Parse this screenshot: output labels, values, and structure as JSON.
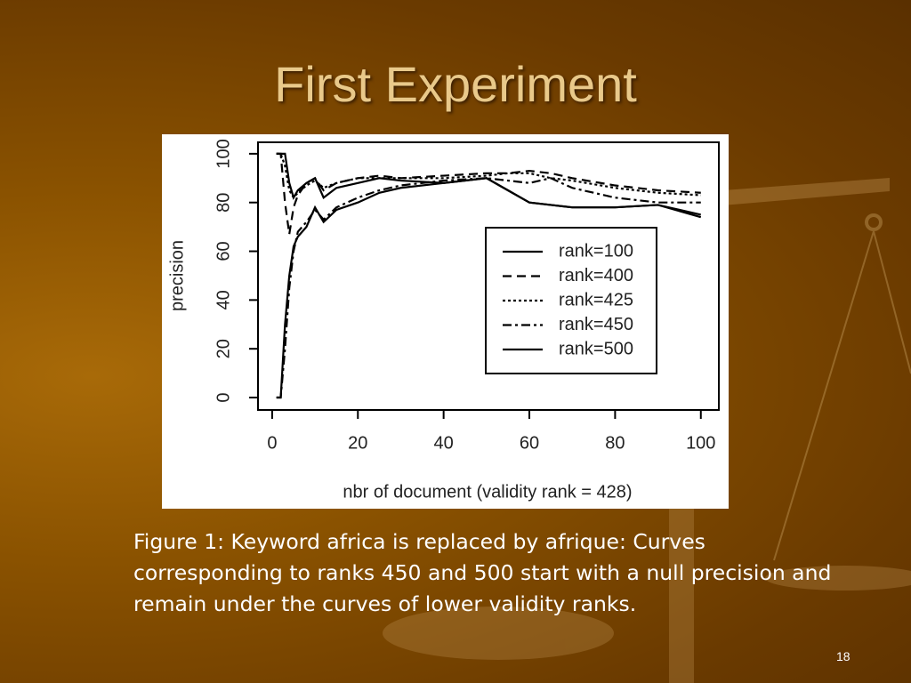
{
  "slide": {
    "title": "First Experiment",
    "caption": "Figure 1: Keyword africa is replaced by afrique: Curves corresponding to ranks 450 and 500 start with a null precision and remain under the curves of lower validity ranks.",
    "page_number": "18"
  },
  "chart_data": {
    "type": "line",
    "x_label": "nbr of document (validity rank = 428)",
    "y_label": "precision",
    "x": [
      1,
      2,
      3,
      4,
      5,
      6,
      8,
      10,
      12,
      15,
      20,
      25,
      30,
      40,
      50,
      55,
      60,
      65,
      70,
      80,
      90,
      100
    ],
    "series": [
      {
        "name": "rank=100",
        "color": "#000000",
        "linestyle": "solid",
        "values": [
          100,
          100,
          100,
          88,
          82,
          85,
          88,
          90,
          82,
          86,
          88,
          90,
          89,
          88,
          90,
          85,
          80,
          79,
          78,
          78,
          79,
          75
        ]
      },
      {
        "name": "rank=400",
        "color": "#000000",
        "linestyle": "dashed",
        "values": [
          100,
          100,
          80,
          67,
          78,
          83,
          88,
          90,
          85,
          88,
          90,
          91,
          90,
          91,
          92,
          92,
          93,
          92,
          90,
          87,
          85,
          84
        ]
      },
      {
        "name": "rank=425",
        "color": "#000000",
        "linestyle": "dotted",
        "values": [
          100,
          100,
          95,
          85,
          82,
          84,
          87,
          89,
          86,
          88,
          90,
          90,
          90,
          90,
          91,
          92,
          92,
          90,
          89,
          86,
          84,
          83
        ]
      },
      {
        "name": "rank=450",
        "color": "#000000",
        "linestyle": "dashdot",
        "values": [
          0,
          0,
          20,
          45,
          60,
          68,
          72,
          77,
          73,
          78,
          82,
          85,
          87,
          89,
          90,
          89,
          88,
          90,
          86,
          82,
          80,
          80
        ]
      },
      {
        "name": "rank=500",
        "color": "#000000",
        "linestyle": "solid",
        "values": [
          0,
          0,
          30,
          50,
          62,
          66,
          70,
          78,
          72,
          77,
          80,
          84,
          86,
          88,
          90,
          85,
          80,
          79,
          78,
          78,
          79,
          74
        ]
      }
    ],
    "xlim": [
      -3.3,
      104.2
    ],
    "xticks": [
      0,
      20,
      40,
      60,
      80,
      100
    ],
    "ylim": [
      -5.1,
      104.7
    ],
    "yticks": [
      0,
      20,
      40,
      60,
      80,
      100
    ]
  }
}
